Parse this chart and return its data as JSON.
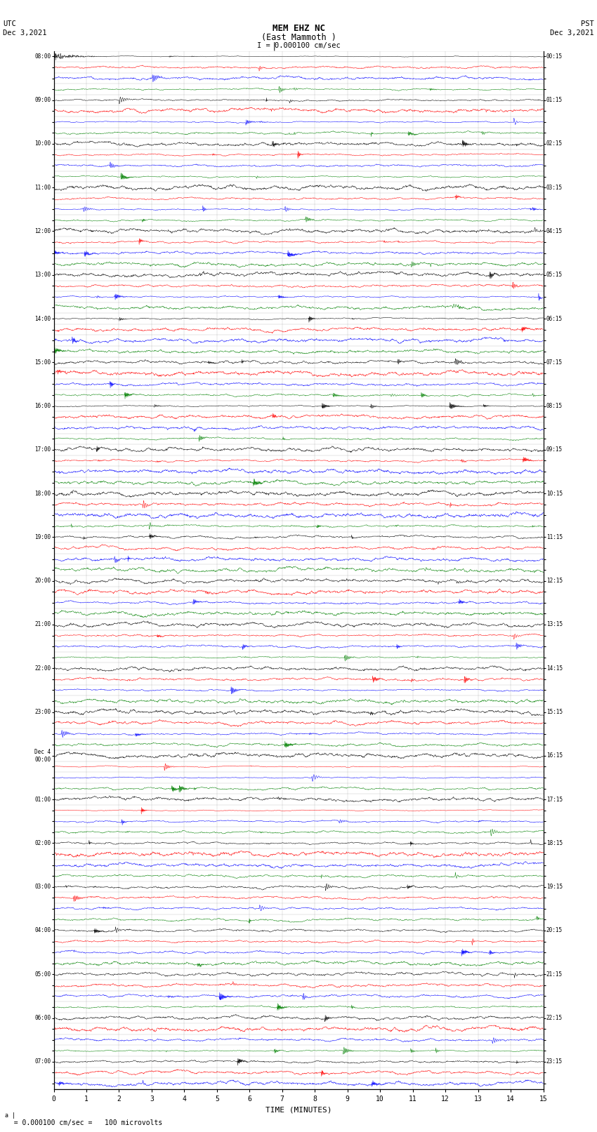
{
  "title_line1": "MEM EHZ NC",
  "title_line2": "(East Mammoth )",
  "scale_text": "I = 0.000100 cm/sec",
  "left_label_line1": "UTC",
  "left_label_line2": "Dec 3,2021",
  "right_label_line1": "PST",
  "right_label_line2": "Dec 3,2021",
  "bottom_label": "TIME (MINUTES)",
  "footer_text": "  = 0.000100 cm/sec =   100 microvolts",
  "xlabel_ticks": [
    0,
    1,
    2,
    3,
    4,
    5,
    6,
    7,
    8,
    9,
    10,
    11,
    12,
    13,
    14,
    15
  ],
  "xlim": [
    0,
    15
  ],
  "trace_colors_cycle": [
    "black",
    "red",
    "blue",
    "green"
  ],
  "bg_color": "white",
  "grid_color": "#888888",
  "fig_width": 8.5,
  "fig_height": 16.13,
  "left_times_utc": [
    "08:00",
    "",
    "",
    "",
    "09:00",
    "",
    "",
    "",
    "10:00",
    "",
    "",
    "",
    "11:00",
    "",
    "",
    "",
    "12:00",
    "",
    "",
    "",
    "13:00",
    "",
    "",
    "",
    "14:00",
    "",
    "",
    "",
    "15:00",
    "",
    "",
    "",
    "16:00",
    "",
    "",
    "",
    "17:00",
    "",
    "",
    "",
    "18:00",
    "",
    "",
    "",
    "19:00",
    "",
    "",
    "",
    "20:00",
    "",
    "",
    "",
    "21:00",
    "",
    "",
    "",
    "22:00",
    "",
    "",
    "",
    "23:00",
    "",
    "",
    "",
    "Dec 4\n00:00",
    "",
    "",
    "",
    "01:00",
    "",
    "",
    "",
    "02:00",
    "",
    "",
    "",
    "03:00",
    "",
    "",
    "",
    "04:00",
    "",
    "",
    "",
    "05:00",
    "",
    "",
    "",
    "06:00",
    "",
    "",
    "",
    "07:00",
    "",
    ""
  ],
  "right_times_pst": [
    "00:15",
    "",
    "",
    "",
    "01:15",
    "",
    "",
    "",
    "02:15",
    "",
    "",
    "",
    "03:15",
    "",
    "",
    "",
    "04:15",
    "",
    "",
    "",
    "05:15",
    "",
    "",
    "",
    "06:15",
    "",
    "",
    "",
    "07:15",
    "",
    "",
    "",
    "08:15",
    "",
    "",
    "",
    "09:15",
    "",
    "",
    "",
    "10:15",
    "",
    "",
    "",
    "11:15",
    "",
    "",
    "",
    "12:15",
    "",
    "",
    "",
    "13:15",
    "",
    "",
    "",
    "14:15",
    "",
    "",
    "",
    "15:15",
    "",
    "",
    "",
    "16:15",
    "",
    "",
    "",
    "17:15",
    "",
    "",
    "",
    "18:15",
    "",
    "",
    "",
    "19:15",
    "",
    "",
    "",
    "20:15",
    "",
    "",
    "",
    "21:15",
    "",
    "",
    "",
    "22:15",
    "",
    "",
    "",
    "23:15",
    "",
    ""
  ],
  "noise_seed": 42,
  "noise_amplitude": 0.06,
  "spike_probability": 0.0015,
  "spike_amplitude": 0.35,
  "trace_scale": 0.38
}
